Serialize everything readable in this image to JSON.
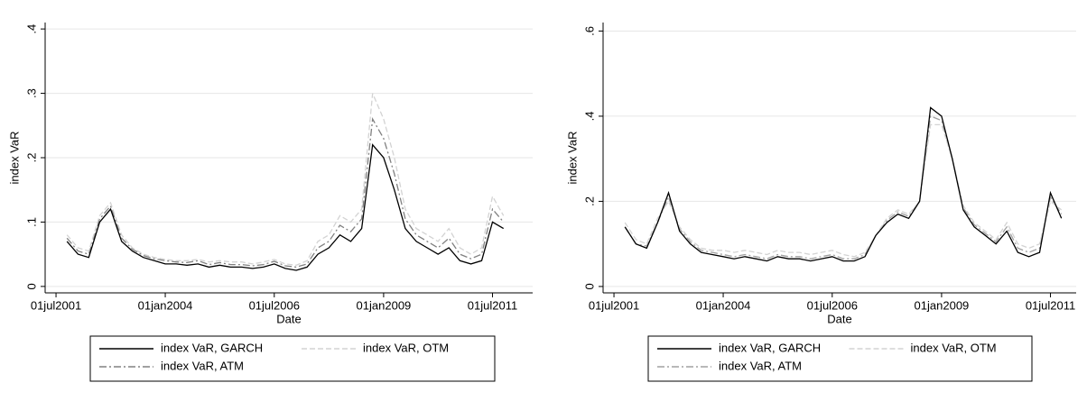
{
  "chart_data": [
    {
      "type": "line",
      "y_label": "index VaR",
      "x_label": "Date",
      "xlim": [
        "2001-04-01",
        "2012-06-01"
      ],
      "ylim": [
        -0.01,
        0.41
      ],
      "xticks": [
        {
          "value": "2001-07-01",
          "label": "01jul2001"
        },
        {
          "value": "2004-01-01",
          "label": "01jan2004"
        },
        {
          "value": "2006-07-01",
          "label": "01jul2006"
        },
        {
          "value": "2009-01-01",
          "label": "01jan2009"
        },
        {
          "value": "2011-07-01",
          "label": "01jul2011"
        }
      ],
      "yticks": [
        0,
        {
          "value": 0.1,
          "label": ".1"
        },
        {
          "value": 0.2,
          "label": ".2"
        },
        {
          "value": 0.3,
          "label": ".3"
        },
        {
          "value": 0.4,
          "label": ".4"
        }
      ],
      "grid": true,
      "legend": "bottom",
      "x": [
        "2001-10-01",
        "2002-01-01",
        "2002-04-01",
        "2002-07-01",
        "2002-10-01",
        "2003-01-01",
        "2003-04-01",
        "2003-07-01",
        "2003-10-01",
        "2004-01-01",
        "2004-04-01",
        "2004-07-01",
        "2004-10-01",
        "2005-01-01",
        "2005-04-01",
        "2005-07-01",
        "2005-10-01",
        "2006-01-01",
        "2006-04-01",
        "2006-07-01",
        "2006-10-01",
        "2007-01-01",
        "2007-04-01",
        "2007-07-01",
        "2007-10-01",
        "2008-01-01",
        "2008-04-01",
        "2008-07-01",
        "2008-10-01",
        "2009-01-01",
        "2009-04-01",
        "2009-07-01",
        "2009-10-01",
        "2010-01-01",
        "2010-04-01",
        "2010-07-01",
        "2010-10-01",
        "2011-01-01",
        "2011-04-01",
        "2011-07-01",
        "2011-10-01"
      ],
      "series": [
        {
          "name": "index VaR, GARCH",
          "color": "#000000",
          "dash": "solid",
          "values": [
            0.07,
            0.05,
            0.045,
            0.1,
            0.12,
            0.07,
            0.055,
            0.045,
            0.04,
            0.035,
            0.035,
            0.033,
            0.035,
            0.03,
            0.033,
            0.03,
            0.03,
            0.028,
            0.03,
            0.035,
            0.028,
            0.025,
            0.03,
            0.05,
            0.06,
            0.08,
            0.07,
            0.09,
            0.22,
            0.2,
            0.15,
            0.09,
            0.07,
            0.06,
            0.05,
            0.06,
            0.04,
            0.035,
            0.04,
            0.1,
            0.09
          ]
        },
        {
          "name": "index VaR, OTM",
          "color": "#d3d3d3",
          "dash": "dashed",
          "values": [
            0.08,
            0.06,
            0.055,
            0.11,
            0.13,
            0.08,
            0.06,
            0.05,
            0.045,
            0.042,
            0.04,
            0.04,
            0.042,
            0.038,
            0.04,
            0.038,
            0.038,
            0.035,
            0.038,
            0.042,
            0.035,
            0.033,
            0.04,
            0.07,
            0.08,
            0.11,
            0.1,
            0.12,
            0.3,
            0.26,
            0.2,
            0.12,
            0.09,
            0.08,
            0.07,
            0.09,
            0.06,
            0.05,
            0.06,
            0.14,
            0.11
          ]
        },
        {
          "name": "index VaR, ATM",
          "color": "#808080",
          "dash": "dashdot",
          "values": [
            0.075,
            0.055,
            0.05,
            0.105,
            0.125,
            0.075,
            0.058,
            0.048,
            0.043,
            0.04,
            0.038,
            0.037,
            0.04,
            0.034,
            0.037,
            0.034,
            0.034,
            0.032,
            0.034,
            0.039,
            0.032,
            0.03,
            0.035,
            0.06,
            0.07,
            0.095,
            0.085,
            0.105,
            0.26,
            0.23,
            0.175,
            0.105,
            0.08,
            0.07,
            0.06,
            0.075,
            0.05,
            0.043,
            0.05,
            0.12,
            0.1
          ]
        }
      ]
    },
    {
      "type": "line",
      "y_label": "index VaR",
      "x_label": "Date",
      "xlim": [
        "2001-04-01",
        "2012-02-01"
      ],
      "ylim": [
        -0.015,
        0.62
      ],
      "xticks": [
        {
          "value": "2001-07-01",
          "label": "01jul2001"
        },
        {
          "value": "2004-01-01",
          "label": "01jan2004"
        },
        {
          "value": "2006-07-01",
          "label": "01jul2006"
        },
        {
          "value": "2009-01-01",
          "label": "01jan2009"
        },
        {
          "value": "2011-07-01",
          "label": "01jul2011"
        }
      ],
      "yticks": [
        0,
        {
          "value": 0.2,
          "label": ".2"
        },
        {
          "value": 0.4,
          "label": ".4"
        },
        {
          "value": 0.6,
          "label": ".6"
        }
      ],
      "grid": true,
      "legend": "bottom",
      "x": [
        "2001-10-01",
        "2002-01-01",
        "2002-04-01",
        "2002-07-01",
        "2002-10-01",
        "2003-01-01",
        "2003-04-01",
        "2003-07-01",
        "2003-10-01",
        "2004-01-01",
        "2004-04-01",
        "2004-07-01",
        "2004-10-01",
        "2005-01-01",
        "2005-04-01",
        "2005-07-01",
        "2005-10-01",
        "2006-01-01",
        "2006-04-01",
        "2006-07-01",
        "2006-10-01",
        "2007-01-01",
        "2007-04-01",
        "2007-07-01",
        "2007-10-01",
        "2008-01-01",
        "2008-04-01",
        "2008-07-01",
        "2008-10-01",
        "2009-01-01",
        "2009-04-01",
        "2009-07-01",
        "2009-10-01",
        "2010-01-01",
        "2010-04-01",
        "2010-07-01",
        "2010-10-01",
        "2011-01-01",
        "2011-04-01",
        "2011-07-01",
        "2011-10-01"
      ],
      "series": [
        {
          "name": "index VaR, GARCH",
          "color": "#000000",
          "dash": "solid",
          "values": [
            0.14,
            0.1,
            0.09,
            0.15,
            0.22,
            0.13,
            0.1,
            0.08,
            0.075,
            0.07,
            0.065,
            0.07,
            0.065,
            0.06,
            0.07,
            0.065,
            0.065,
            0.06,
            0.065,
            0.07,
            0.06,
            0.06,
            0.07,
            0.12,
            0.15,
            0.17,
            0.16,
            0.2,
            0.42,
            0.4,
            0.3,
            0.18,
            0.14,
            0.12,
            0.1,
            0.13,
            0.08,
            0.07,
            0.08,
            0.22,
            0.16
          ]
        },
        {
          "name": "index VaR, OTM",
          "color": "#d3d3d3",
          "dash": "dashed",
          "values": [
            0.15,
            0.11,
            0.1,
            0.16,
            0.2,
            0.14,
            0.11,
            0.09,
            0.085,
            0.085,
            0.08,
            0.085,
            0.08,
            0.075,
            0.085,
            0.08,
            0.08,
            0.075,
            0.08,
            0.085,
            0.075,
            0.07,
            0.08,
            0.12,
            0.16,
            0.18,
            0.17,
            0.2,
            0.38,
            0.38,
            0.3,
            0.19,
            0.15,
            0.13,
            0.11,
            0.15,
            0.1,
            0.09,
            0.1,
            0.2,
            0.18
          ]
        },
        {
          "name": "index VaR, ATM",
          "color": "#a0a0a0",
          "dash": "dashdot",
          "values": [
            0.14,
            0.1,
            0.095,
            0.15,
            0.21,
            0.135,
            0.105,
            0.085,
            0.08,
            0.075,
            0.07,
            0.075,
            0.07,
            0.065,
            0.075,
            0.07,
            0.07,
            0.065,
            0.07,
            0.075,
            0.065,
            0.065,
            0.075,
            0.12,
            0.155,
            0.175,
            0.165,
            0.2,
            0.4,
            0.39,
            0.3,
            0.185,
            0.145,
            0.125,
            0.105,
            0.14,
            0.09,
            0.08,
            0.09,
            0.21,
            0.17
          ]
        }
      ]
    }
  ]
}
